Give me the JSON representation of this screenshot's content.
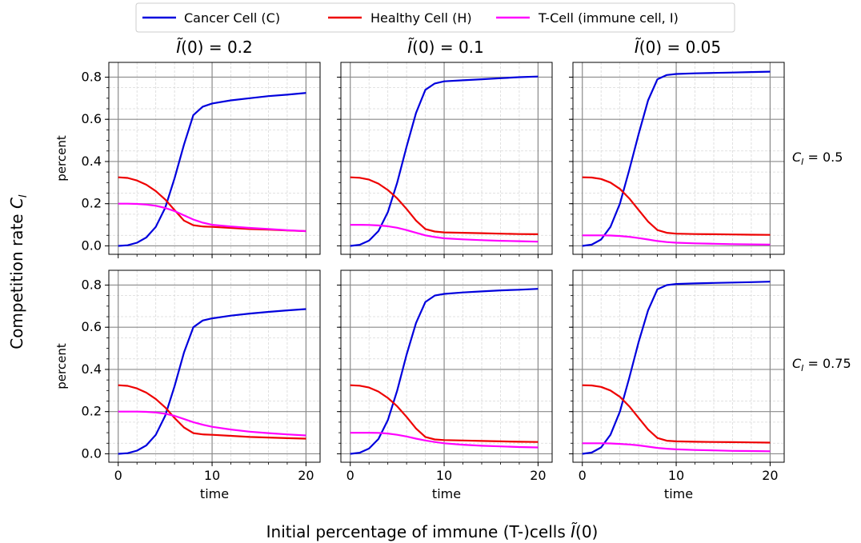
{
  "figure": {
    "supxlabel_prefix": "Initial percentage of immune (T-)cells ",
    "supylabel_prefix": "Competition rate ",
    "legend": [
      "Cancer Cell (C)",
      "Healthy Cell (H)",
      "T-Cell (immune cell, I)"
    ]
  },
  "chart_data": {
    "type": "line",
    "layout": "2x3 grid, shared axes",
    "col_titles": [
      "0.2",
      "0.1",
      "0.05"
    ],
    "row_labels": [
      "0.5",
      "0.75"
    ],
    "xlabel": "time",
    "ylabel": "percent",
    "xlim": [
      -1,
      21.5
    ],
    "ylim": [
      -0.04,
      0.87
    ],
    "xticks": [
      0,
      10,
      20
    ],
    "yticks": [
      0.0,
      0.2,
      0.4,
      0.6,
      0.8
    ],
    "ytick_labels": [
      "0.0",
      "0.2",
      "0.4",
      "0.6",
      "0.8"
    ],
    "grid": true,
    "legend_position": "top-center",
    "colors": {
      "C": "#0000dd",
      "H": "#ee0000",
      "I": "#ff00ff"
    },
    "series_names": [
      "Cancer Cell (C)",
      "Healthy Cell (H)",
      "T-Cell (immune cell, I)"
    ],
    "x": [
      0,
      1,
      2,
      3,
      4,
      5,
      6,
      7,
      8,
      9,
      10,
      12,
      14,
      16,
      18,
      20
    ],
    "panels": [
      {
        "row": 0,
        "col": 0,
        "C": [
          0.0,
          0.003,
          0.015,
          0.04,
          0.09,
          0.18,
          0.32,
          0.48,
          0.62,
          0.66,
          0.675,
          0.69,
          0.7,
          0.71,
          0.717,
          0.725
        ],
        "H": [
          0.325,
          0.322,
          0.31,
          0.29,
          0.26,
          0.22,
          0.17,
          0.12,
          0.098,
          0.092,
          0.09,
          0.085,
          0.08,
          0.077,
          0.073,
          0.07
        ],
        "I": [
          0.2,
          0.2,
          0.199,
          0.196,
          0.19,
          0.18,
          0.165,
          0.145,
          0.125,
          0.11,
          0.1,
          0.092,
          0.085,
          0.08,
          0.074,
          0.07
        ]
      },
      {
        "row": 0,
        "col": 1,
        "C": [
          0.0,
          0.005,
          0.025,
          0.07,
          0.16,
          0.3,
          0.47,
          0.63,
          0.74,
          0.77,
          0.78,
          0.785,
          0.79,
          0.795,
          0.8,
          0.803
        ],
        "H": [
          0.325,
          0.323,
          0.314,
          0.295,
          0.265,
          0.225,
          0.175,
          0.12,
          0.08,
          0.068,
          0.064,
          0.062,
          0.06,
          0.058,
          0.056,
          0.055
        ],
        "I": [
          0.1,
          0.1,
          0.099,
          0.097,
          0.093,
          0.086,
          0.075,
          0.062,
          0.05,
          0.042,
          0.036,
          0.031,
          0.027,
          0.024,
          0.022,
          0.02
        ]
      },
      {
        "row": 0,
        "col": 2,
        "C": [
          0.0,
          0.006,
          0.03,
          0.09,
          0.2,
          0.36,
          0.53,
          0.69,
          0.79,
          0.81,
          0.815,
          0.818,
          0.82,
          0.822,
          0.824,
          0.826
        ],
        "H": [
          0.325,
          0.324,
          0.317,
          0.3,
          0.27,
          0.225,
          0.17,
          0.115,
          0.075,
          0.062,
          0.058,
          0.056,
          0.055,
          0.054,
          0.053,
          0.052
        ],
        "I": [
          0.05,
          0.05,
          0.05,
          0.049,
          0.047,
          0.043,
          0.037,
          0.03,
          0.023,
          0.018,
          0.015,
          0.012,
          0.01,
          0.008,
          0.007,
          0.006
        ]
      },
      {
        "row": 1,
        "col": 0,
        "C": [
          0.0,
          0.003,
          0.015,
          0.04,
          0.09,
          0.18,
          0.32,
          0.48,
          0.6,
          0.632,
          0.642,
          0.655,
          0.665,
          0.673,
          0.68,
          0.686
        ],
        "H": [
          0.325,
          0.322,
          0.31,
          0.29,
          0.26,
          0.22,
          0.17,
          0.125,
          0.098,
          0.092,
          0.09,
          0.085,
          0.08,
          0.077,
          0.074,
          0.072
        ],
        "I": [
          0.2,
          0.2,
          0.2,
          0.199,
          0.196,
          0.19,
          0.18,
          0.165,
          0.15,
          0.138,
          0.128,
          0.115,
          0.105,
          0.098,
          0.092,
          0.087
        ]
      },
      {
        "row": 1,
        "col": 1,
        "C": [
          0.0,
          0.005,
          0.025,
          0.07,
          0.16,
          0.3,
          0.47,
          0.62,
          0.72,
          0.75,
          0.758,
          0.765,
          0.77,
          0.775,
          0.778,
          0.782
        ],
        "H": [
          0.325,
          0.323,
          0.314,
          0.295,
          0.265,
          0.225,
          0.175,
          0.12,
          0.08,
          0.068,
          0.065,
          0.063,
          0.061,
          0.059,
          0.057,
          0.056
        ],
        "I": [
          0.1,
          0.1,
          0.1,
          0.099,
          0.096,
          0.09,
          0.082,
          0.072,
          0.063,
          0.056,
          0.05,
          0.043,
          0.038,
          0.035,
          0.032,
          0.03
        ]
      },
      {
        "row": 1,
        "col": 2,
        "C": [
          0.0,
          0.006,
          0.03,
          0.09,
          0.2,
          0.36,
          0.53,
          0.68,
          0.78,
          0.8,
          0.805,
          0.808,
          0.81,
          0.812,
          0.814,
          0.816
        ],
        "H": [
          0.325,
          0.324,
          0.317,
          0.3,
          0.27,
          0.225,
          0.17,
          0.115,
          0.075,
          0.062,
          0.059,
          0.057,
          0.056,
          0.055,
          0.054,
          0.053
        ],
        "I": [
          0.05,
          0.05,
          0.05,
          0.049,
          0.047,
          0.044,
          0.04,
          0.034,
          0.028,
          0.024,
          0.021,
          0.018,
          0.016,
          0.014,
          0.013,
          0.012
        ]
      }
    ]
  }
}
